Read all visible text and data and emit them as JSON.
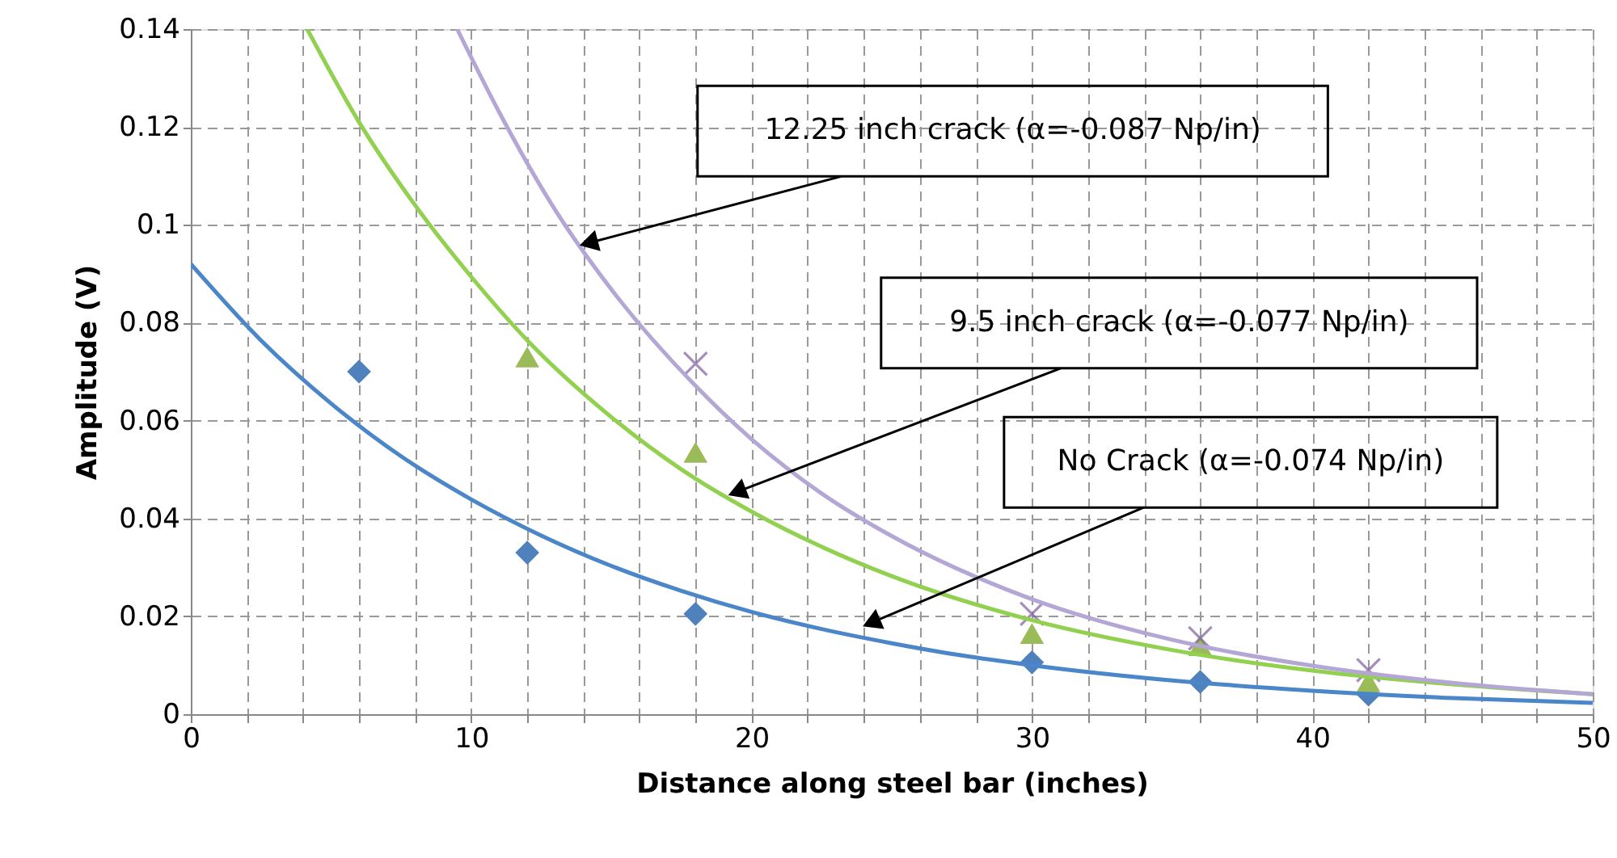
{
  "chart_data": {
    "type": "scatter",
    "xlabel": "Distance along steel bar (inches)",
    "ylabel": "Amplitude (V)",
    "xlim": [
      0,
      50
    ],
    "ylim": [
      0,
      0.14
    ],
    "xticks": [
      0,
      {
        "value": 2,
        "label": null
      },
      {
        "value": 4,
        "label": null
      },
      {
        "value": 6,
        "label": null
      },
      {
        "value": 8,
        "label": null
      },
      10,
      {
        "value": 12,
        "label": null
      },
      {
        "value": 14,
        "label": null
      },
      {
        "value": 16,
        "label": null
      },
      {
        "value": 18,
        "label": null
      },
      20,
      {
        "value": 22,
        "label": null
      },
      {
        "value": 24,
        "label": null
      },
      {
        "value": 26,
        "label": null
      },
      {
        "value": 28,
        "label": null
      },
      30,
      {
        "value": 32,
        "label": null
      },
      {
        "value": 34,
        "label": null
      },
      {
        "value": 36,
        "label": null
      },
      {
        "value": 38,
        "label": null
      },
      40,
      {
        "value": 42,
        "label": null
      },
      {
        "value": 44,
        "label": null
      },
      {
        "value": 46,
        "label": null
      },
      {
        "value": 48,
        "label": null
      },
      50
    ],
    "yticks": [
      0,
      0.02,
      0.04,
      0.06,
      0.08,
      0.1,
      0.12,
      0.14
    ],
    "grid": true,
    "line_style": "dashed",
    "series": [
      {
        "type": "scatter",
        "marker": "diamond",
        "color": "#4f81bd",
        "x": [
          6,
          12,
          18,
          30,
          36,
          42
        ],
        "values": [
          0.07,
          0.033,
          0.0205,
          0.0106,
          0.0066,
          0.004
        ]
      },
      {
        "type": "scatter",
        "marker": "triangle",
        "color": "#9bbb59",
        "x": [
          12,
          18,
          30,
          36,
          42
        ],
        "values": [
          0.073,
          0.0535,
          0.0165,
          0.014,
          0.0066
        ]
      },
      {
        "type": "scatter",
        "marker": "cross",
        "color": "#7f5f9f",
        "x": [
          18,
          30,
          36,
          42
        ],
        "values": [
          0.0716,
          0.0205,
          0.0155,
          0.009
        ]
      },
      {
        "type": "line",
        "marker": "none",
        "line_style": "solid",
        "color": "#4a86c8",
        "x": [
          0,
          2.5,
          5,
          7.5,
          10,
          12.5,
          15,
          17.5,
          20,
          22.5,
          25,
          27.5,
          30,
          35,
          40,
          45,
          50
        ],
        "values": [
          0.092,
          0.0764,
          0.0635,
          0.0527,
          0.0439,
          0.0365,
          0.0303,
          0.0252,
          0.0209,
          0.0174,
          0.0145,
          0.012,
          0.01,
          0.0069,
          0.0048,
          0.0033,
          0.0023
        ]
      },
      {
        "type": "line",
        "marker": "none",
        "line_style": "solid",
        "color": "#92d050",
        "x": [
          4.15,
          6,
          8,
          10,
          12,
          15,
          17.5,
          20,
          22.5,
          25,
          30,
          35,
          40,
          45,
          50
        ],
        "values": [
          0.14,
          0.121,
          0.104,
          0.0894,
          0.0764,
          0.0607,
          0.05,
          0.0414,
          0.0342,
          0.0282,
          0.0192,
          0.0131,
          0.0089,
          0.0061,
          0.0041
        ]
      },
      {
        "type": "line",
        "marker": "none",
        "line_style": "solid",
        "color": "#b4a7d6",
        "x": [
          9.5,
          11,
          13,
          15,
          18,
          20,
          22.5,
          25,
          30,
          35,
          40,
          45,
          50
        ],
        "values": [
          0.14,
          0.123,
          0.103,
          0.0868,
          0.0671,
          0.0562,
          0.0451,
          0.0364,
          0.0235,
          0.0152,
          0.0099,
          0.0064,
          0.0041
        ]
      }
    ],
    "annotations": [
      {
        "text": "12.25 inch crack (α=-0.087 Np/in)",
        "x": 13.8,
        "y": 0.0957
      },
      {
        "text": "9.5 inch crack (α=-0.077 Np/in)",
        "x": 19.1,
        "y": 0.0446
      },
      {
        "text": "No Crack (α=-0.074 Np/in)",
        "x": 23.9,
        "y": 0.0178
      }
    ]
  }
}
